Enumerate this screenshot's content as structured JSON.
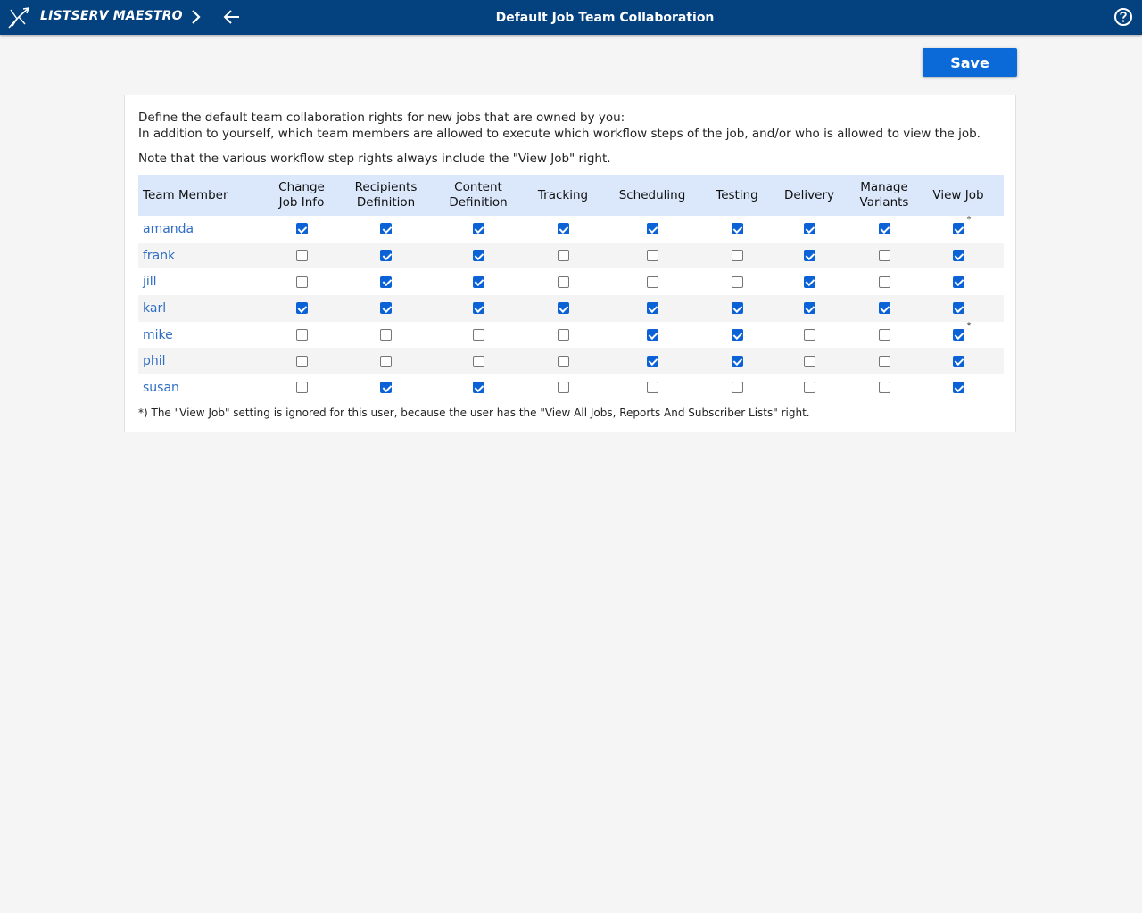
{
  "header": {
    "brand": "LISTSERV MAESTRO",
    "title": "Default Job Team Collaboration",
    "colors": {
      "bar": "#04417f",
      "accent": "#0c6ad8",
      "link": "#2f6ec4"
    },
    "icons": [
      "maestro-logo-icon",
      "chevron-right-icon",
      "arrow-left-icon",
      "help-icon"
    ]
  },
  "toolbar": {
    "save_label": "Save"
  },
  "intro": {
    "line1": "Define the default team collaboration rights for new jobs that are owned by you:",
    "line2": "In addition to yourself, which team members are allowed to execute which workflow steps of the job, and/or who is allowed to view the job.",
    "note": "Note that the various workflow step rights always include the \"View Job\" right."
  },
  "table": {
    "columns": [
      {
        "line1": "Team Member",
        "line2": ""
      },
      {
        "line1": "Change",
        "line2": "Job Info"
      },
      {
        "line1": "Recipients",
        "line2": "Definition"
      },
      {
        "line1": "Content",
        "line2": "Definition"
      },
      {
        "line1": "Tracking",
        "line2": ""
      },
      {
        "line1": "Scheduling",
        "line2": ""
      },
      {
        "line1": "Testing",
        "line2": ""
      },
      {
        "line1": "Delivery",
        "line2": ""
      },
      {
        "line1": "Manage",
        "line2": "Variants"
      },
      {
        "line1": "View Job",
        "line2": ""
      }
    ],
    "rows": [
      {
        "name": "amanda",
        "rights": [
          true,
          true,
          true,
          true,
          true,
          true,
          true,
          true,
          true
        ],
        "view_star": "*"
      },
      {
        "name": "frank",
        "rights": [
          false,
          true,
          true,
          false,
          false,
          false,
          true,
          false,
          true
        ],
        "view_star": ""
      },
      {
        "name": "jill",
        "rights": [
          false,
          true,
          true,
          false,
          false,
          false,
          true,
          false,
          true
        ],
        "view_star": ""
      },
      {
        "name": "karl",
        "rights": [
          true,
          true,
          true,
          true,
          true,
          true,
          true,
          true,
          true
        ],
        "view_star": ""
      },
      {
        "name": "mike",
        "rights": [
          false,
          false,
          false,
          false,
          true,
          true,
          false,
          false,
          true
        ],
        "view_star": "*"
      },
      {
        "name": "phil",
        "rights": [
          false,
          false,
          false,
          false,
          true,
          true,
          false,
          false,
          true
        ],
        "view_star": ""
      },
      {
        "name": "susan",
        "rights": [
          false,
          true,
          true,
          false,
          false,
          false,
          false,
          false,
          true
        ],
        "view_star": ""
      }
    ]
  },
  "footnote": "*) The \"View Job\" setting is ignored for this user, because the user has the \"View All Jobs, Reports And Subscriber Lists\" right."
}
